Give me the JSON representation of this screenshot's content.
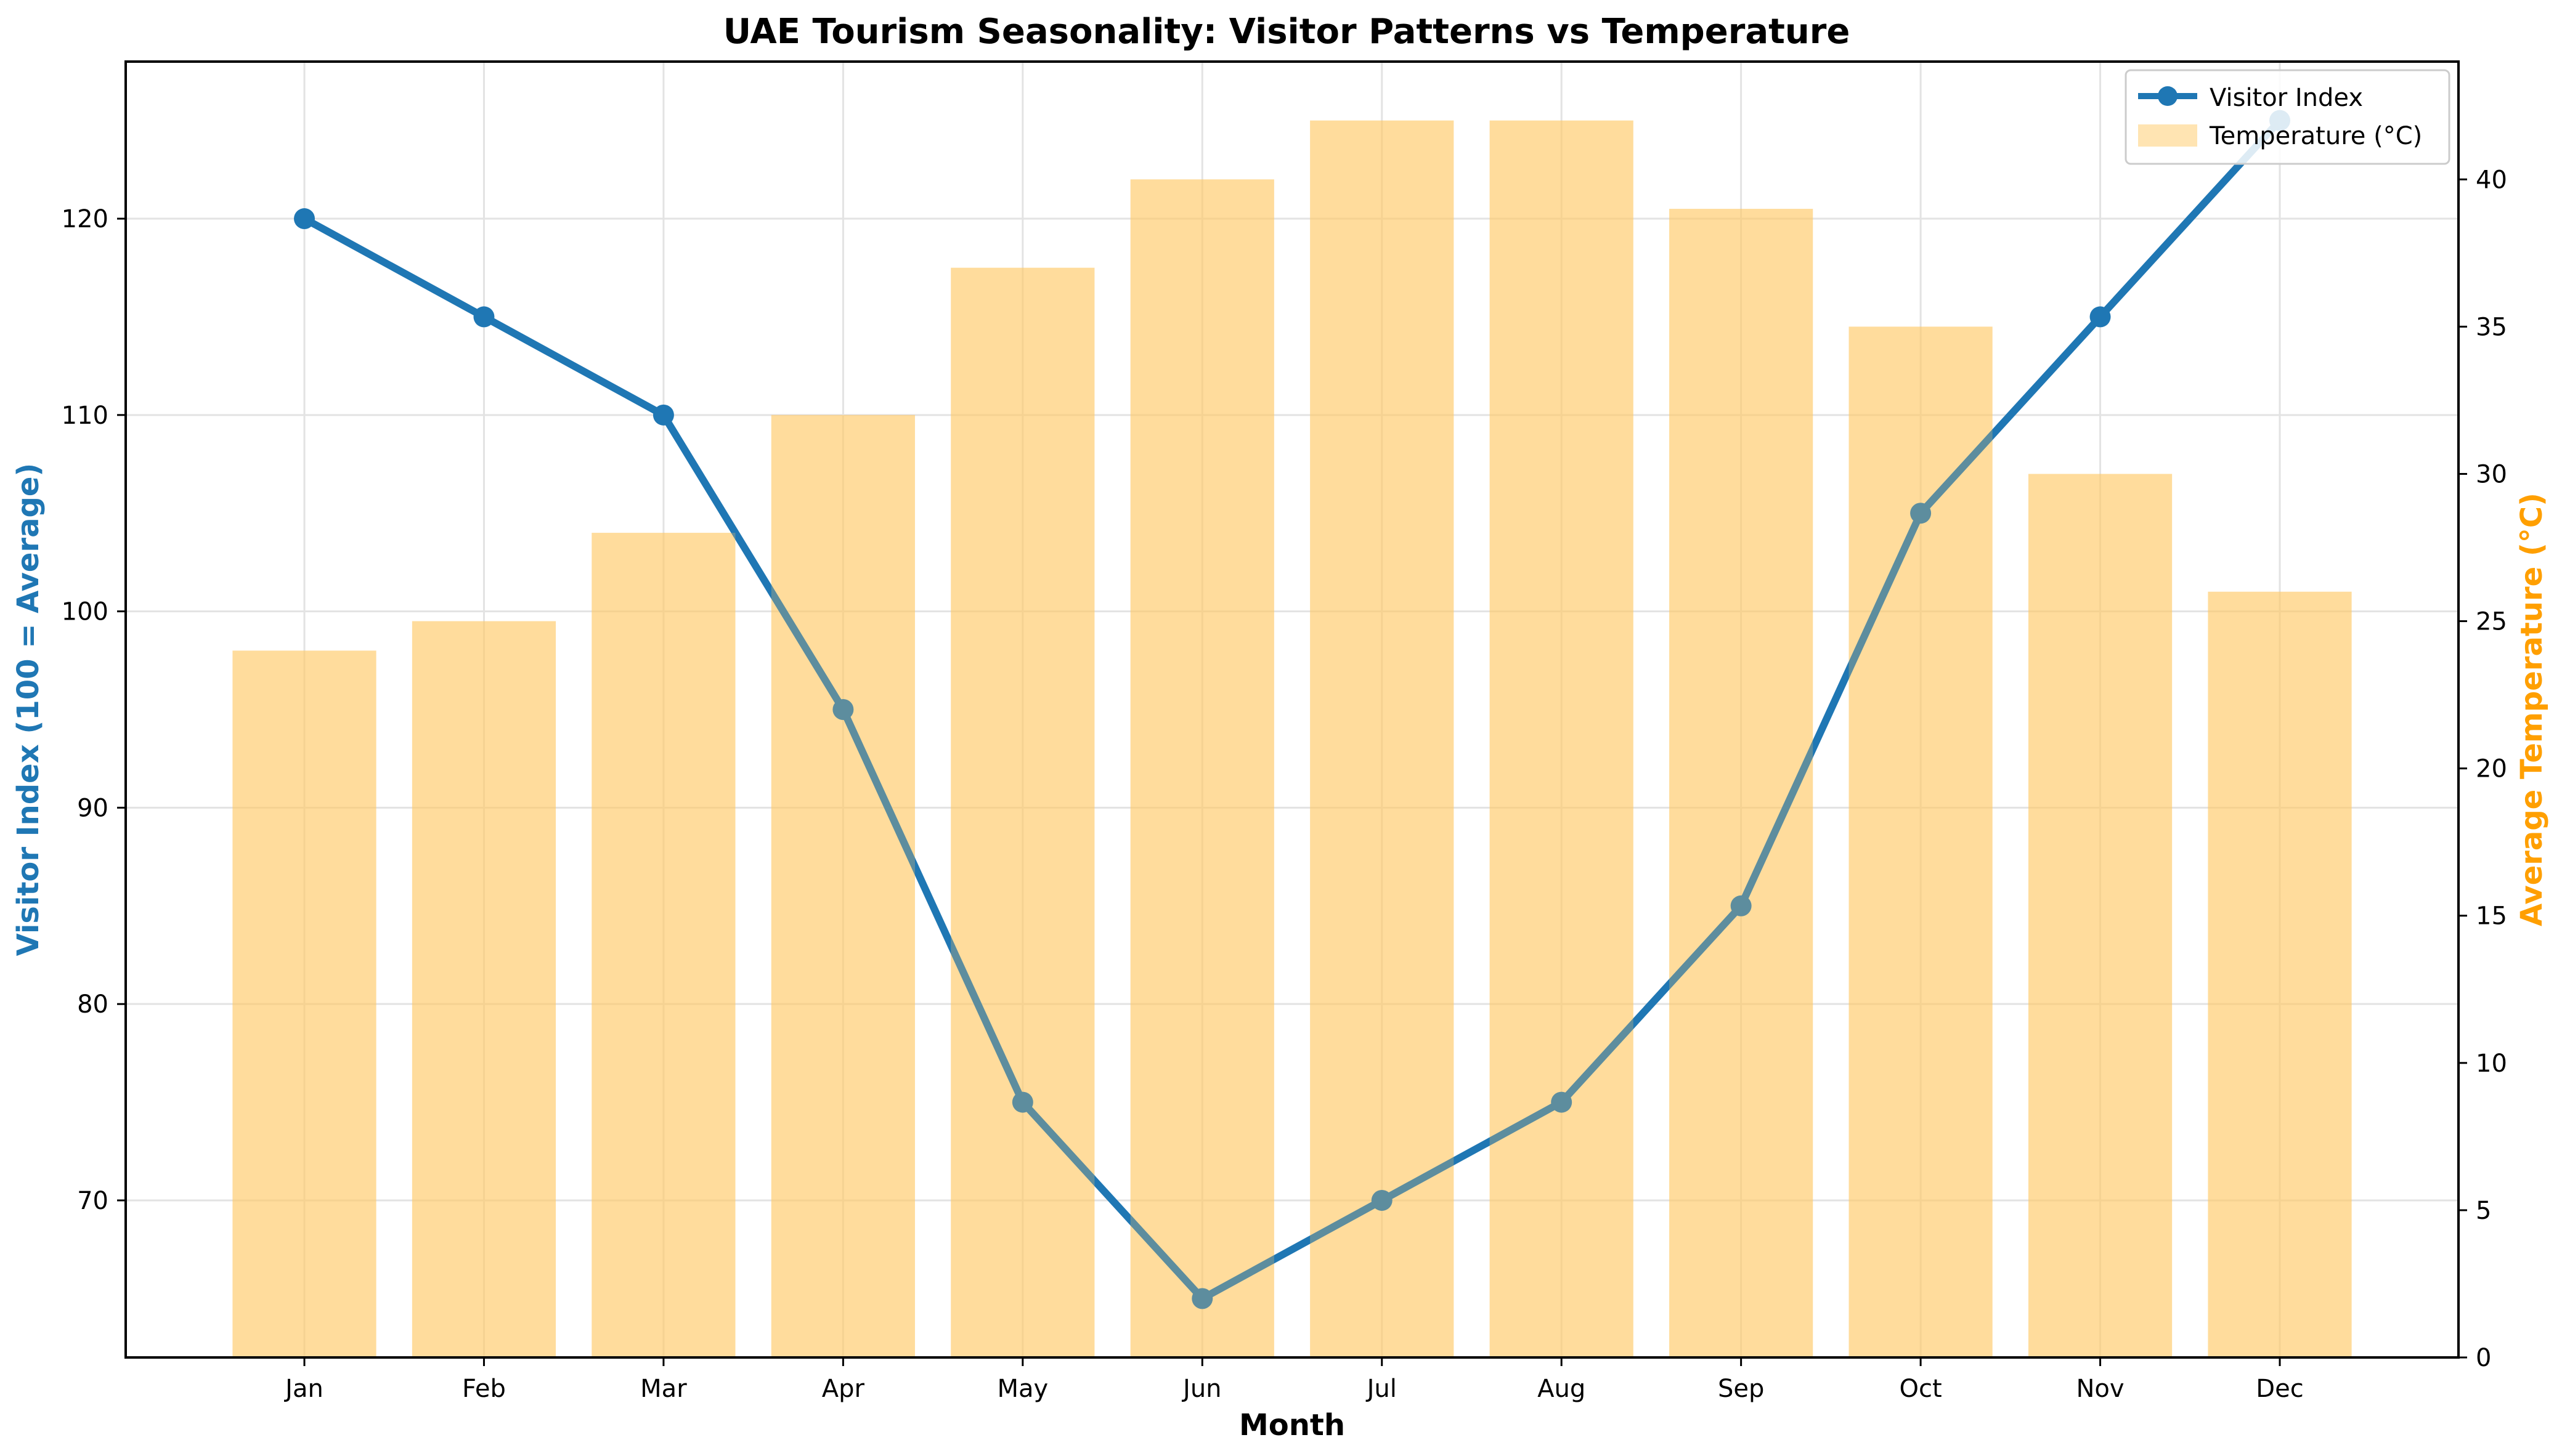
{
  "chart_data": {
    "type": "bar",
    "title": "UAE Tourism Seasonality: Visitor Patterns vs Temperature",
    "xlabel": "Month",
    "ylabel_left": "Visitor Index (100 = Average)",
    "ylabel_right": "Average Temperature (°C)",
    "categories": [
      "Jan",
      "Feb",
      "Mar",
      "Apr",
      "May",
      "Jun",
      "Jul",
      "Aug",
      "Sep",
      "Oct",
      "Nov",
      "Dec"
    ],
    "series": [
      {
        "name": "Visitor Index",
        "type": "line",
        "axis": "left",
        "color": "#1f77b4",
        "values": [
          120,
          115,
          110,
          95,
          75,
          65,
          70,
          75,
          85,
          105,
          115,
          125
        ]
      },
      {
        "name": "Temperature (°C)",
        "type": "bar",
        "axis": "right",
        "color": "#ffc966",
        "values": [
          24,
          25,
          28,
          32,
          37,
          40,
          42,
          42,
          39,
          35,
          30,
          26
        ]
      }
    ],
    "ylim_left": [
      62,
      128
    ],
    "yticks_left": [
      70,
      80,
      90,
      100,
      110,
      120
    ],
    "ylim_right": [
      0,
      44
    ],
    "yticks_right": [
      0,
      5,
      10,
      15,
      20,
      25,
      30,
      35,
      40
    ],
    "grid": true,
    "legend_position": "top-right",
    "colors": {
      "left_axis_label": "#1f77b4",
      "right_axis_label": "#ff9f00",
      "axis": "#000000",
      "grid": "#e3e3e3"
    }
  }
}
